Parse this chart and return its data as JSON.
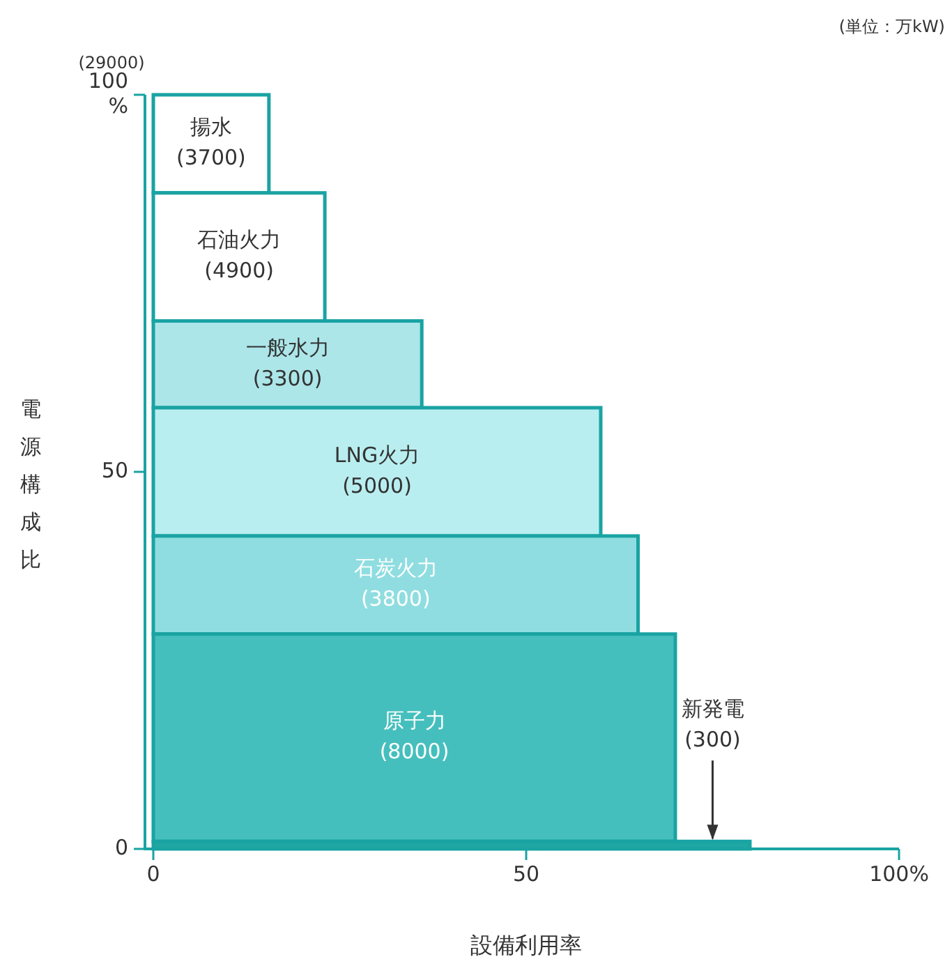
{
  "chart_data": {
    "type": "histogram",
    "orientation": "horizontal",
    "xlabel": "設備利用率",
    "ylabel": "電源構成比",
    "bins": [
      0,
      1,
      28.5,
      41.5,
      58.5,
      70,
      87,
      100
    ],
    "values": [
      80,
      70,
      65,
      60,
      36,
      23,
      15.5
    ],
    "colors": [
      "#1fa7a3",
      "#45bfbd",
      "#8fdde0",
      "#b9eef0",
      "#ace6e9",
      "#ffffff",
      "#ffffff"
    ],
    "xlim": [
      0,
      100
    ],
    "xticks": [
      0,
      50,
      {
        "value": 100,
        "label": "100%"
      }
    ],
    "ylim": [
      0,
      100
    ],
    "yticks": [
      0,
      50,
      {
        "value": 100,
        "label": "100\n%"
      }
    ],
    "grid": false,
    "legend": false,
    "annotations": [
      "(単位：万kW)",
      "(29000)",
      {
        "text": "新発電\n(300)",
        "x": 75,
        "y": 1
      },
      "原子力\n(8000)",
      "石炭火力\n(3800)",
      "LNG火力\n(5000)",
      "一般水力\n(3300)",
      "石油火力\n(4900)",
      "揚水\n(3700)"
    ]
  }
}
